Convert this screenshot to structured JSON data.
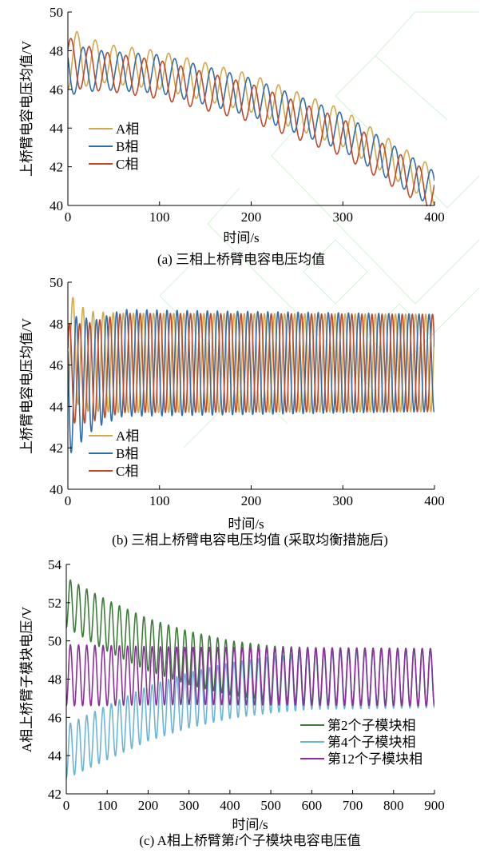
{
  "colors": {
    "axis": "#000000",
    "phase_a": "#d4a94c",
    "phase_b": "#2f6fb0",
    "phase_c": "#bf4a2c",
    "sm2": "#3e7d3a",
    "sm4": "#6bb5d6",
    "sm12": "#8b2f9b",
    "watermark": "#b8ecc0"
  },
  "chart_data": [
    {
      "type": "line",
      "caption": "(a) 三相上桥臂电容电压均值",
      "xlabel": "时间/s",
      "ylabel": "上桥臂电容电压均值/V",
      "xlim": [
        0,
        400
      ],
      "ylim": [
        40,
        50
      ],
      "xticks": [
        0,
        100,
        200,
        300,
        400
      ],
      "yticks": [
        40,
        42,
        44,
        46,
        48,
        50
      ],
      "grid": false,
      "legend_position": "left-bottom",
      "series": [
        {
          "name": "A相",
          "color_key": "phase_a",
          "period": 20,
          "phase": 0.25,
          "center": [
            [
              0,
              47.6
            ],
            [
              30,
              47.4
            ],
            [
              100,
              47.0
            ],
            [
              200,
              45.8
            ],
            [
              300,
              44.0
            ],
            [
              400,
              41.0
            ]
          ],
          "amplitude": [
            [
              0,
              1.6
            ],
            [
              40,
              1.0
            ],
            [
              400,
              0.95
            ]
          ]
        },
        {
          "name": "B相",
          "color_key": "phase_b",
          "period": 20,
          "phase": 0.583,
          "center": [
            [
              0,
              47.0
            ],
            [
              30,
              47.0
            ],
            [
              100,
              46.8
            ],
            [
              200,
              45.6
            ],
            [
              300,
              43.8
            ],
            [
              400,
              40.8
            ]
          ],
          "amplitude": [
            [
              0,
              1.3
            ],
            [
              40,
              1.0
            ],
            [
              400,
              0.95
            ]
          ]
        },
        {
          "name": "C相",
          "color_key": "phase_c",
          "period": 20,
          "phase": 0.917,
          "center": [
            [
              0,
              47.4
            ],
            [
              30,
              47.0
            ],
            [
              100,
              46.5
            ],
            [
              200,
              45.3
            ],
            [
              300,
              43.5
            ],
            [
              400,
              40.6
            ]
          ],
          "amplitude": [
            [
              0,
              1.3
            ],
            [
              40,
              1.0
            ],
            [
              400,
              0.95
            ]
          ]
        }
      ]
    },
    {
      "type": "line",
      "caption": "(b) 三相上桥臂电容电压均值 (采取均衡措施后)",
      "xlabel": "时间/s",
      "ylabel": "上桥臂电容电压均值/V",
      "xlim": [
        0,
        400
      ],
      "ylim": [
        40,
        50
      ],
      "xticks": [
        0,
        100,
        200,
        300,
        400
      ],
      "yticks": [
        40,
        42,
        44,
        46,
        48,
        50
      ],
      "grid": false,
      "legend_position": "left-bottom",
      "series": [
        {
          "name": "A相",
          "color_key": "phase_a",
          "period": 11,
          "phase": 0.25,
          "center": [
            [
              0,
              47.0
            ],
            [
              20,
              46.2
            ],
            [
              60,
              46.1
            ],
            [
              400,
              46.1
            ]
          ],
          "amplitude": [
            [
              0,
              2.5
            ],
            [
              30,
              2.4
            ],
            [
              400,
              2.35
            ]
          ]
        },
        {
          "name": "B相",
          "color_key": "phase_b",
          "period": 11,
          "phase": 0.583,
          "center": [
            [
              0,
              45.0
            ],
            [
              20,
              45.4
            ],
            [
              60,
              46.1
            ],
            [
              400,
              46.1
            ]
          ],
          "amplitude": [
            [
              0,
              3.4
            ],
            [
              30,
              2.6
            ],
            [
              400,
              2.35
            ]
          ]
        },
        {
          "name": "C相",
          "color_key": "phase_c",
          "period": 11,
          "phase": 0.917,
          "center": [
            [
              0,
              45.6
            ],
            [
              20,
              45.6
            ],
            [
              60,
              46.1
            ],
            [
              400,
              46.1
            ]
          ],
          "amplitude": [
            [
              0,
              2.4
            ],
            [
              30,
              2.4
            ],
            [
              400,
              2.35
            ]
          ]
        }
      ]
    },
    {
      "type": "line",
      "caption": "(c) A相上桥臂第i个子模块电容电压值",
      "caption_parts": [
        "(c) A相上桥臂第",
        "i",
        "个子模块电容电压值"
      ],
      "xlabel": "时间/s",
      "ylabel": "A相上桥臂子模块电压/V",
      "xlim": [
        0,
        900
      ],
      "ylim": [
        42,
        54
      ],
      "xticks": [
        0,
        100,
        200,
        300,
        400,
        500,
        600,
        700,
        800,
        900
      ],
      "yticks": [
        42,
        44,
        46,
        48,
        50,
        52,
        54
      ],
      "grid": false,
      "legend_position": "right-bottom",
      "series": [
        {
          "name": "第2个子模块相",
          "color_key": "sm2",
          "period": 20,
          "phase": 0.25,
          "center": [
            [
              0,
              52.0
            ],
            [
              100,
              50.8
            ],
            [
              200,
              49.8
            ],
            [
              300,
              49.1
            ],
            [
              400,
              48.6
            ],
            [
              500,
              48.3
            ],
            [
              600,
              48.2
            ],
            [
              900,
              48.1
            ]
          ],
          "amplitude": [
            [
              0,
              1.3
            ],
            [
              300,
              1.4
            ],
            [
              900,
              1.5
            ]
          ]
        },
        {
          "name": "第4个子模块相",
          "color_key": "sm4",
          "period": 20,
          "phase": 0.25,
          "center": [
            [
              0,
              44.2
            ],
            [
              100,
              45.2
            ],
            [
              200,
              46.2
            ],
            [
              300,
              46.9
            ],
            [
              400,
              47.4
            ],
            [
              500,
              47.7
            ],
            [
              600,
              47.9
            ],
            [
              900,
              48.0
            ]
          ],
          "amplitude": [
            [
              0,
              1.4
            ],
            [
              300,
              1.45
            ],
            [
              900,
              1.5
            ]
          ]
        },
        {
          "name": "第12个子模块相",
          "color_key": "sm12",
          "period": 20,
          "phase": 0.25,
          "center": [
            [
              0,
              48.2
            ],
            [
              900,
              48.1
            ]
          ],
          "amplitude": [
            [
              0,
              1.6
            ],
            [
              300,
              1.5
            ],
            [
              900,
              1.5
            ]
          ]
        }
      ]
    }
  ]
}
